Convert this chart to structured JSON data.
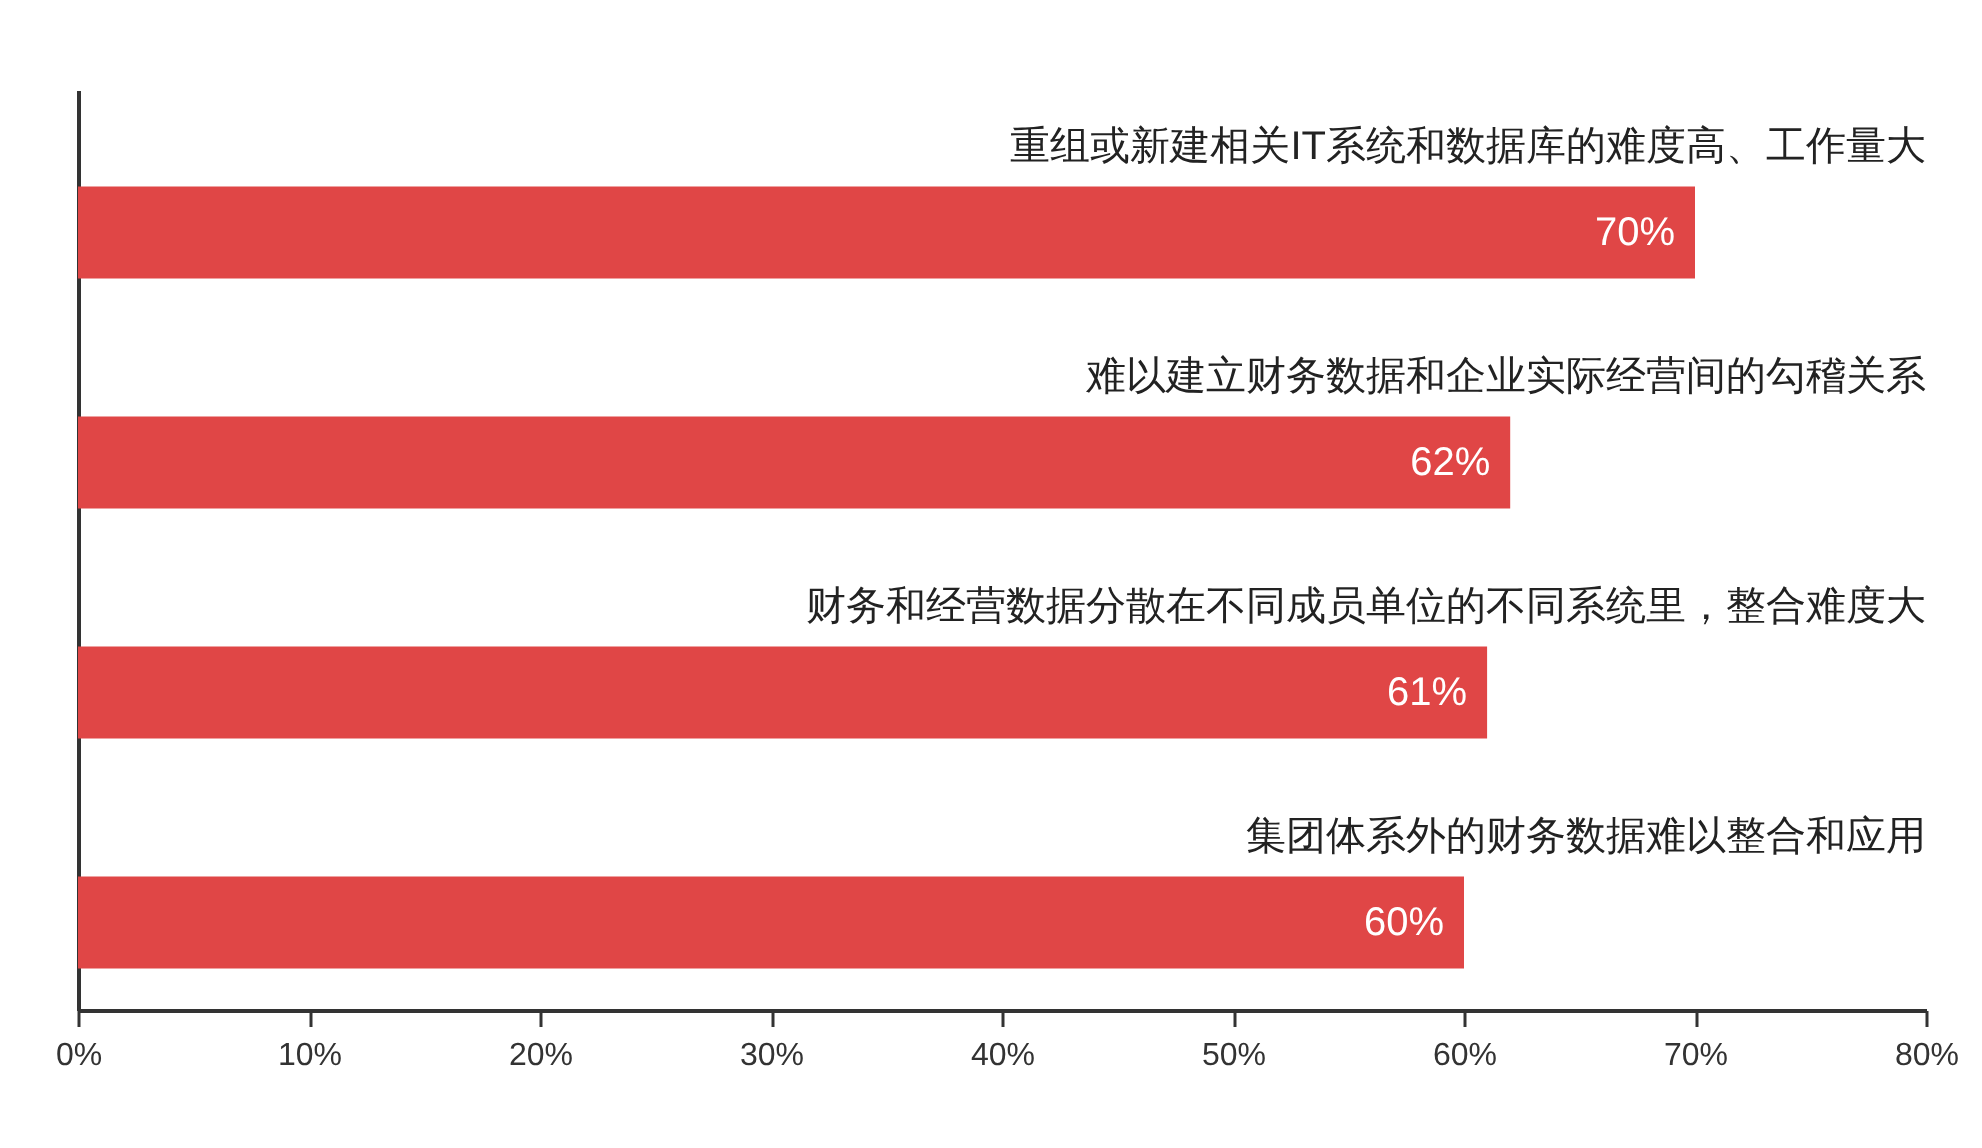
{
  "chart_data": {
    "type": "bar",
    "orientation": "horizontal",
    "categories": [
      "重组或新建相关IT系统和数据库的难度高、工作量大",
      "难以建立财务数据和企业实际经营间的勾稽关系",
      "财务和经营数据分散在不同成员单位的不同系统里，整合难度大",
      "集团体系外的财务数据难以整合和应用"
    ],
    "values": [
      70,
      62,
      61,
      60
    ],
    "value_labels": [
      "70%",
      "62%",
      "61%",
      "60%"
    ],
    "color": "#e04646",
    "xlim": [
      0,
      80
    ],
    "xticks": [
      {
        "value": 0,
        "label": "0%"
      },
      {
        "value": 10,
        "label": "10%"
      },
      {
        "value": 20,
        "label": "20%"
      },
      {
        "value": 30,
        "label": "30%"
      },
      {
        "value": 40,
        "label": "40%"
      },
      {
        "value": 50,
        "label": "50%"
      },
      {
        "value": 60,
        "label": "60%"
      },
      {
        "value": 70,
        "label": "70%"
      },
      {
        "value": 80,
        "label": "80%"
      }
    ],
    "grid": false
  }
}
